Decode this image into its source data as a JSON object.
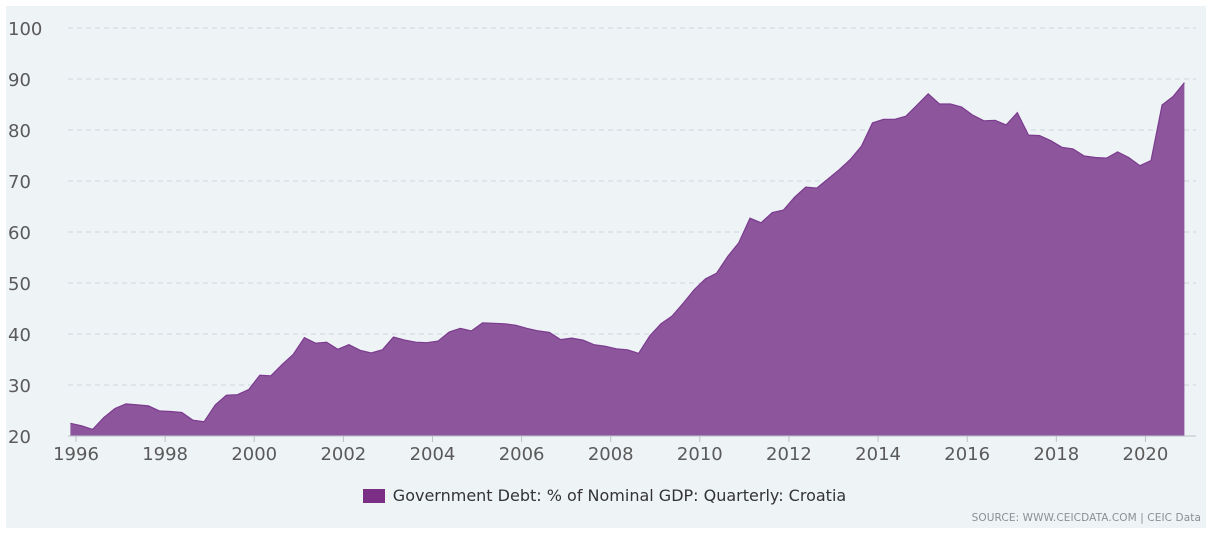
{
  "colors": {
    "area_fill": "#8c559c",
    "area_stroke": "#7b3b8e",
    "legend_swatch": "#7b2e86",
    "grid": "#cfd7de",
    "axis_text": "#5a5a5a",
    "background": "#eef3f6"
  },
  "chart_data": {
    "type": "area",
    "title": "",
    "xlabel": "",
    "ylabel": "",
    "x_ticks": [
      "1996",
      "1998",
      "2000",
      "2002",
      "2004",
      "2006",
      "2008",
      "2010",
      "2012",
      "2014",
      "2016",
      "2018",
      "2020"
    ],
    "y_ticks": [
      "20",
      "30",
      "40",
      "50",
      "60",
      "70",
      "80",
      "90",
      "100"
    ],
    "ylim": [
      20,
      100
    ],
    "xlim": [
      1996,
      2021
    ],
    "grid": true,
    "legend_position": "bottom-center",
    "series": [
      {
        "name": "Government Debt: % of Nominal GDP: Quarterly: Croatia",
        "x": [
          1995.875,
          1996.125,
          1996.375,
          1996.625,
          1996.875,
          1997.125,
          1997.375,
          1997.625,
          1997.875,
          1998.125,
          1998.375,
          1998.625,
          1998.875,
          1999.125,
          1999.375,
          1999.625,
          1999.875,
          2000.125,
          2000.375,
          2000.625,
          2000.875,
          2001.125,
          2001.375,
          2001.625,
          2001.875,
          2002.125,
          2002.375,
          2002.625,
          2002.875,
          2003.125,
          2003.375,
          2003.625,
          2003.875,
          2004.125,
          2004.375,
          2004.625,
          2004.875,
          2005.125,
          2005.375,
          2005.625,
          2005.875,
          2006.125,
          2006.375,
          2006.625,
          2006.875,
          2007.125,
          2007.375,
          2007.625,
          2007.875,
          2008.125,
          2008.375,
          2008.625,
          2008.875,
          2009.125,
          2009.375,
          2009.625,
          2009.875,
          2010.125,
          2010.375,
          2010.625,
          2010.875,
          2011.125,
          2011.375,
          2011.625,
          2011.875,
          2012.125,
          2012.375,
          2012.625,
          2012.875,
          2013.125,
          2013.375,
          2013.625,
          2013.875,
          2014.125,
          2014.375,
          2014.625,
          2014.875,
          2015.125,
          2015.375,
          2015.625,
          2015.875,
          2016.125,
          2016.375,
          2016.625,
          2016.875,
          2017.125,
          2017.375,
          2017.625,
          2017.875,
          2018.125,
          2018.375,
          2018.625,
          2018.875,
          2019.125,
          2019.375,
          2019.625,
          2019.875,
          2020.125,
          2020.375,
          2020.625,
          2020.875
        ],
        "values": [
          22.5,
          22.0,
          21.3,
          23.6,
          25.4,
          26.3,
          26.1,
          25.9,
          24.9,
          24.8,
          24.6,
          23.1,
          22.8,
          26.1,
          28.0,
          28.1,
          29.1,
          31.9,
          31.8,
          34.0,
          36.0,
          39.3,
          38.2,
          38.4,
          37.0,
          37.9,
          36.8,
          36.3,
          36.9,
          39.4,
          38.8,
          38.4,
          38.3,
          38.6,
          40.4,
          41.1,
          40.6,
          42.2,
          42.1,
          42.0,
          41.7,
          41.1,
          40.6,
          40.3,
          38.9,
          39.2,
          38.8,
          37.9,
          37.6,
          37.1,
          36.9,
          36.2,
          39.6,
          42.0,
          43.5,
          46.0,
          48.7,
          50.8,
          51.9,
          55.2,
          57.9,
          62.7,
          61.8,
          63.8,
          64.3,
          66.8,
          68.8,
          68.6,
          70.4,
          72.2,
          74.2,
          76.8,
          81.4,
          82.1,
          82.1,
          82.7,
          84.9,
          87.1,
          85.1,
          85.1,
          84.5,
          82.9,
          81.8,
          81.9,
          81.0,
          83.4,
          79.0,
          78.9,
          77.9,
          76.6,
          76.3,
          74.9,
          74.6,
          74.5,
          75.7,
          74.6,
          73.0,
          74.0,
          84.9,
          86.6,
          89.3
        ]
      }
    ]
  },
  "legend": {
    "label": "Government Debt: % of Nominal GDP: Quarterly: Croatia"
  },
  "source": {
    "text": "SOURCE: WWW.CEICDATA.COM | CEIC Data"
  }
}
